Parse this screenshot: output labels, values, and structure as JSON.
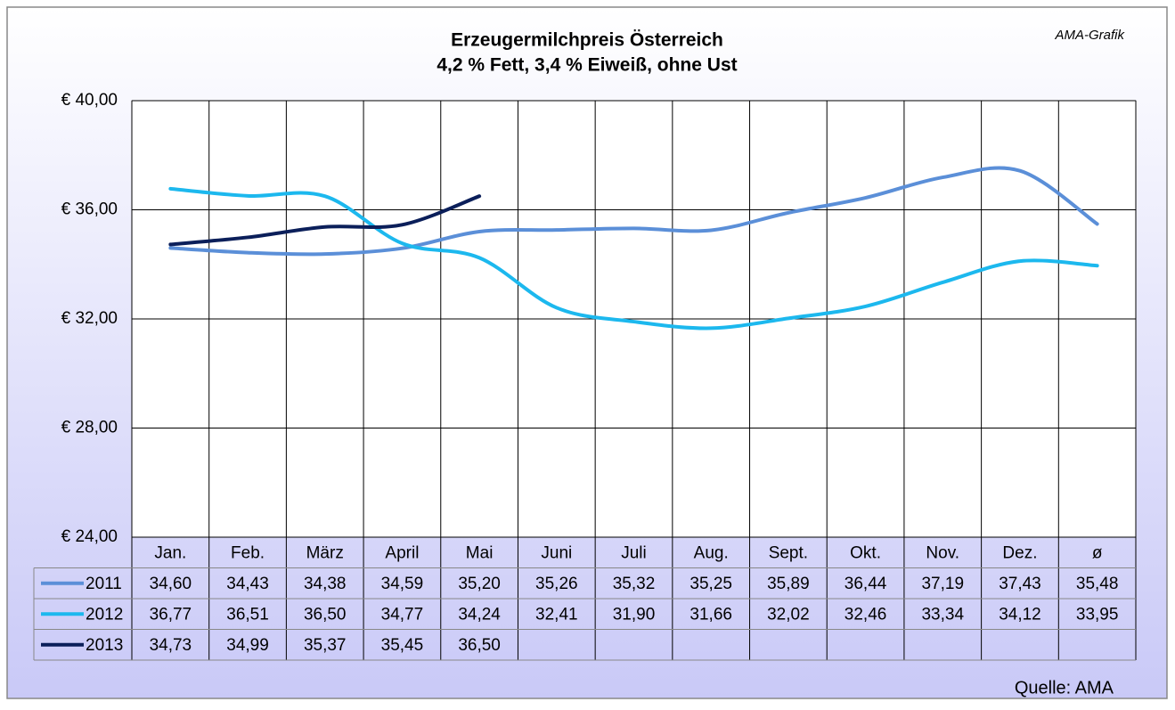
{
  "chart_data": {
    "type": "line",
    "title": "Erzeugermilchpreis Österreich",
    "subtitle": "4,2 % Fett, 3,4 % Eiweiß, ohne Ust",
    "annotation": "AMA-Grafik",
    "source": "Quelle: AMA",
    "categories": [
      "Jan.",
      "Feb.",
      "März",
      "April",
      "Mai",
      "Juni",
      "Juli",
      "Aug.",
      "Sept.",
      "Okt.",
      "Nov.",
      "Dez.",
      "ø"
    ],
    "series": [
      {
        "name": "2011",
        "color": "#5b8fd8",
        "values": [
          34.6,
          34.43,
          34.38,
          34.59,
          35.2,
          35.26,
          35.32,
          35.25,
          35.89,
          36.44,
          37.19,
          37.43,
          35.48
        ],
        "value_labels": [
          "34,60",
          "34,43",
          "34,38",
          "34,59",
          "35,20",
          "35,26",
          "35,32",
          "35,25",
          "35,89",
          "36,44",
          "37,19",
          "37,43",
          "35,48"
        ]
      },
      {
        "name": "2012",
        "color": "#1cb8ee",
        "values": [
          36.77,
          36.51,
          36.5,
          34.77,
          34.24,
          32.41,
          31.9,
          31.66,
          32.02,
          32.46,
          33.34,
          34.12,
          33.95
        ],
        "value_labels": [
          "36,77",
          "36,51",
          "36,50",
          "34,77",
          "34,24",
          "32,41",
          "31,90",
          "31,66",
          "32,02",
          "32,46",
          "33,34",
          "34,12",
          "33,95"
        ]
      },
      {
        "name": "2013",
        "color": "#0b1f5a",
        "values": [
          34.73,
          34.99,
          35.37,
          35.45,
          36.5,
          null,
          null,
          null,
          null,
          null,
          null,
          null,
          null
        ],
        "value_labels": [
          "34,73",
          "34,99",
          "35,37",
          "35,45",
          "36,50",
          null,
          null,
          null,
          null,
          null,
          null,
          null,
          null
        ]
      }
    ],
    "ylim": [
      24,
      40
    ],
    "yticks": [
      {
        "value": 24,
        "label": "€ 24,00"
      },
      {
        "value": 28,
        "label": "€ 28,00"
      },
      {
        "value": 32,
        "label": "€ 32,00"
      },
      {
        "value": 36,
        "label": "€ 36,00"
      },
      {
        "value": 40,
        "label": "€ 40,00"
      }
    ],
    "grid": true
  }
}
